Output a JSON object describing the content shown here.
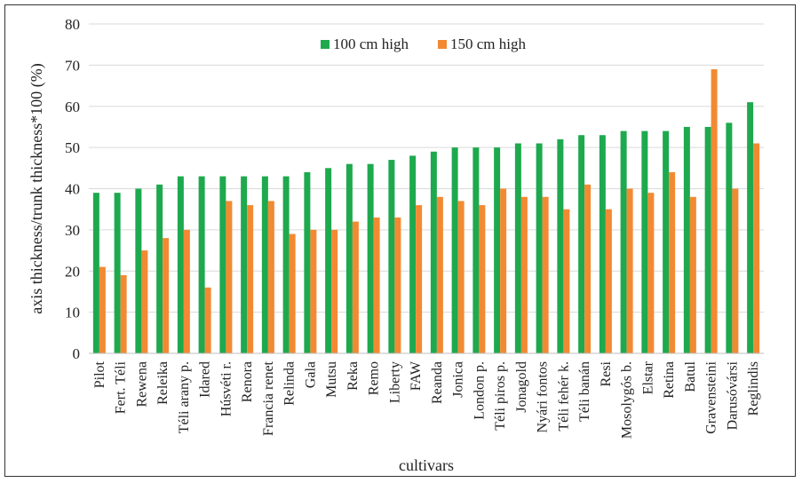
{
  "chart_data": {
    "type": "bar",
    "title": "",
    "xlabel": "cultivars",
    "ylabel": "axis thickness/trunk thickness*100 (%)",
    "ylim": [
      0,
      80
    ],
    "yticks": [
      0,
      10,
      20,
      30,
      40,
      50,
      60,
      70,
      80
    ],
    "grid": true,
    "legend_position": "top-center",
    "categories": [
      "Pilot",
      "Fert. Téli",
      "Rewena",
      "Releika",
      "Téli arany p.",
      "Idared",
      "Húsvéti r.",
      "Renora",
      "Francia renet",
      "Relinda",
      "Gala",
      "Mutsu",
      "Reka",
      "Remo",
      "Liberty",
      "FAW",
      "Reanda",
      "Jonica",
      "London p.",
      "Téli piros p.",
      "Jonagold",
      "Nyári fontos",
      "Téli fehér k.",
      "Téli banán",
      "Resi",
      "Mosolygós b.",
      "Elstar",
      "Retina",
      "Batul",
      "Gravensteini",
      "Darusóvársi",
      "Reglindis"
    ],
    "series": [
      {
        "name": "100 cm high",
        "color": "#1ea94e",
        "values": [
          39,
          39,
          40,
          41,
          43,
          43,
          43,
          43,
          43,
          43,
          44,
          45,
          46,
          46,
          47,
          48,
          49,
          50,
          50,
          50,
          51,
          51,
          52,
          53,
          53,
          54,
          54,
          54,
          55,
          55,
          56,
          61
        ]
      },
      {
        "name": "150 cm high",
        "color": "#f28a33",
        "values": [
          21,
          19,
          25,
          28,
          30,
          16,
          37,
          36,
          37,
          29,
          30,
          30,
          32,
          33,
          33,
          36,
          38,
          37,
          36,
          40,
          38,
          38,
          35,
          41,
          35,
          40,
          39,
          44,
          38,
          69,
          40,
          51
        ]
      }
    ]
  }
}
